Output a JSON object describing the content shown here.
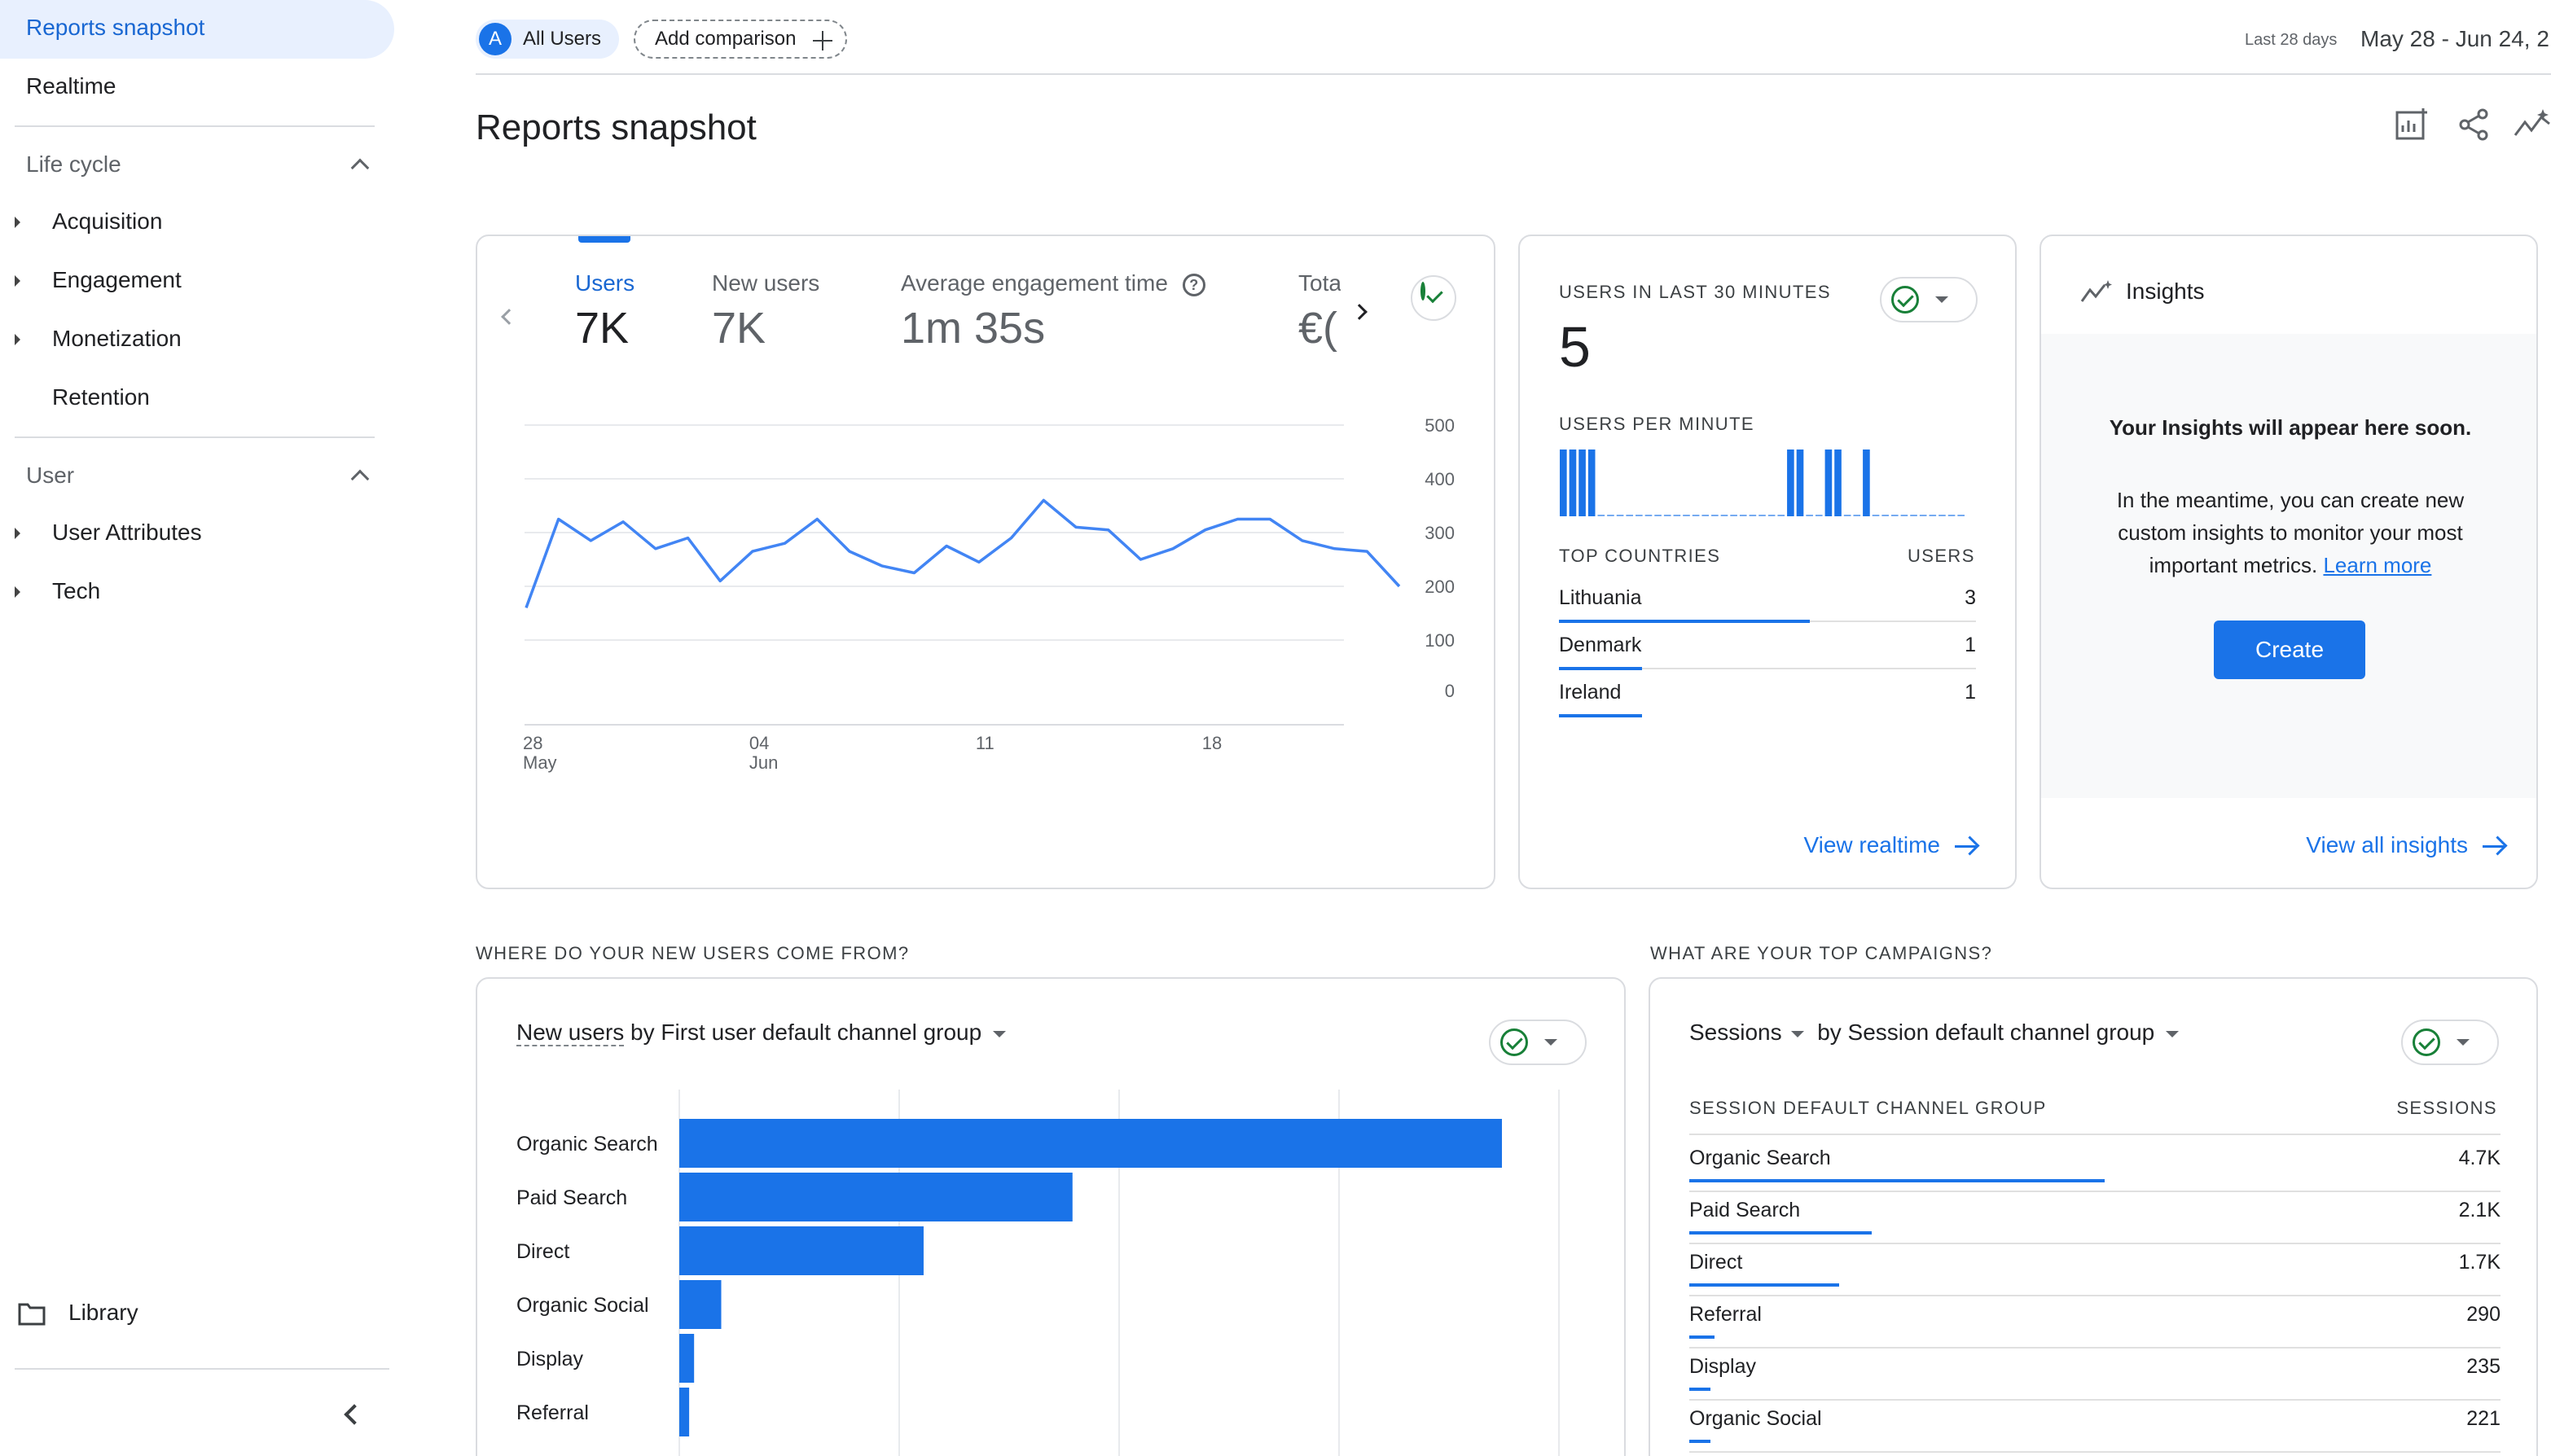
{
  "sidebar": {
    "reports_snapshot": "Reports snapshot",
    "realtime": "Realtime",
    "lifecycle_title": "Life cycle",
    "lifecycle_items": [
      "Acquisition",
      "Engagement",
      "Monetization",
      "Retention"
    ],
    "user_title": "User",
    "user_items": [
      "User Attributes",
      "Tech"
    ],
    "library": "Library",
    "icons": {
      "folder": "folder-icon",
      "collapse": "chevron-left-icon"
    }
  },
  "topbar": {
    "segment_avatar": "A",
    "segment_label": "All Users",
    "add_comparison": "Add comparison",
    "date_prefix": "Last 28 days",
    "date_range": "May 28 - Jun 24, 2"
  },
  "page": {
    "title": "Reports snapshot",
    "icons": [
      "customize-report-icon",
      "share-icon",
      "insights-trend-icon"
    ]
  },
  "overview_card": {
    "tabs": [
      {
        "label": "Users",
        "value": "7K",
        "active": true
      },
      {
        "label": "New users",
        "value": "7K",
        "active": false
      },
      {
        "label": "Average engagement time",
        "value": "1m 35s",
        "active": false
      },
      {
        "label": "Tota",
        "value": "€(",
        "active": false
      }
    ]
  },
  "chart_data": {
    "type": "line",
    "x_ticks": [
      {
        "day": "28",
        "month": "May"
      },
      {
        "day": "04",
        "month": "Jun"
      },
      {
        "day": "11",
        "month": ""
      },
      {
        "day": "18",
        "month": ""
      }
    ],
    "y_ticks": [
      "500",
      "400",
      "300",
      "200",
      "100",
      "0"
    ],
    "ylim": [
      0,
      500
    ],
    "series": [
      {
        "values": [
          160,
          325,
          285,
          320,
          270,
          290,
          210,
          265,
          280,
          325,
          265,
          238,
          225,
          275,
          245,
          290,
          360,
          310,
          305,
          250,
          270,
          305,
          325,
          325,
          285,
          270,
          265,
          200
        ]
      }
    ],
    "color": "#4285f4"
  },
  "realtime_card": {
    "title": "USERS IN LAST 30 MINUTES",
    "value": "5",
    "per_minute_label": "USERS PER MINUTE",
    "per_minute_values": [
      1,
      1,
      1,
      1,
      0,
      0,
      0,
      0,
      0,
      0,
      0,
      0,
      0,
      0,
      0,
      0,
      0,
      0,
      0,
      0,
      0,
      0,
      0,
      0,
      1,
      1,
      0,
      0,
      1,
      1,
      0,
      0,
      1,
      0,
      0,
      0,
      0,
      0,
      0,
      0,
      0,
      0,
      0
    ],
    "countries_header": "TOP COUNTRIES",
    "users_header": "USERS",
    "countries": [
      {
        "name": "Lithuania",
        "users": "3",
        "share": 0.6
      },
      {
        "name": "Denmark",
        "users": "1",
        "share": 0.2
      },
      {
        "name": "Ireland",
        "users": "1",
        "share": 0.2
      }
    ],
    "view_link": "View realtime"
  },
  "insights_card": {
    "title": "Insights",
    "headline": "Your Insights will appear here soon.",
    "body_line1": "In the meantime, you can create new",
    "body_line2": "custom insights to monitor your most",
    "body_line3": "important metrics.",
    "learn_more": "Learn more",
    "create_button": "Create",
    "view_link": "View all insights"
  },
  "new_users_section": {
    "heading": "WHERE DO YOUR NEW USERS COME FROM?",
    "title_metric": "New users",
    "title_rest": "by First user default channel group",
    "bars": [
      {
        "label": "Organic Search",
        "value": 1.0
      },
      {
        "label": "Paid Search",
        "value": 0.478
      },
      {
        "label": "Direct",
        "value": 0.297
      },
      {
        "label": "Organic Social",
        "value": 0.051
      },
      {
        "label": "Display",
        "value": 0.018
      },
      {
        "label": "Referral",
        "value": 0.012
      }
    ],
    "bar_color": "#1a73e8"
  },
  "campaigns_section": {
    "heading": "WHAT ARE YOUR TOP CAMPAIGNS?",
    "title_metric": "Sessions",
    "title_rest": "by Session default channel group",
    "col_left": "SESSION DEFAULT CHANNEL GROUP",
    "col_right": "SESSIONS",
    "rows": [
      {
        "name": "Organic Search",
        "value": "4.7K",
        "share": 1.0
      },
      {
        "name": "Paid Search",
        "value": "2.1K",
        "share": 0.44
      },
      {
        "name": "Direct",
        "value": "1.7K",
        "share": 0.36
      },
      {
        "name": "Referral",
        "value": "290",
        "share": 0.06
      },
      {
        "name": "Display",
        "value": "235",
        "share": 0.05
      },
      {
        "name": "Organic Social",
        "value": "221",
        "share": 0.05
      }
    ]
  }
}
